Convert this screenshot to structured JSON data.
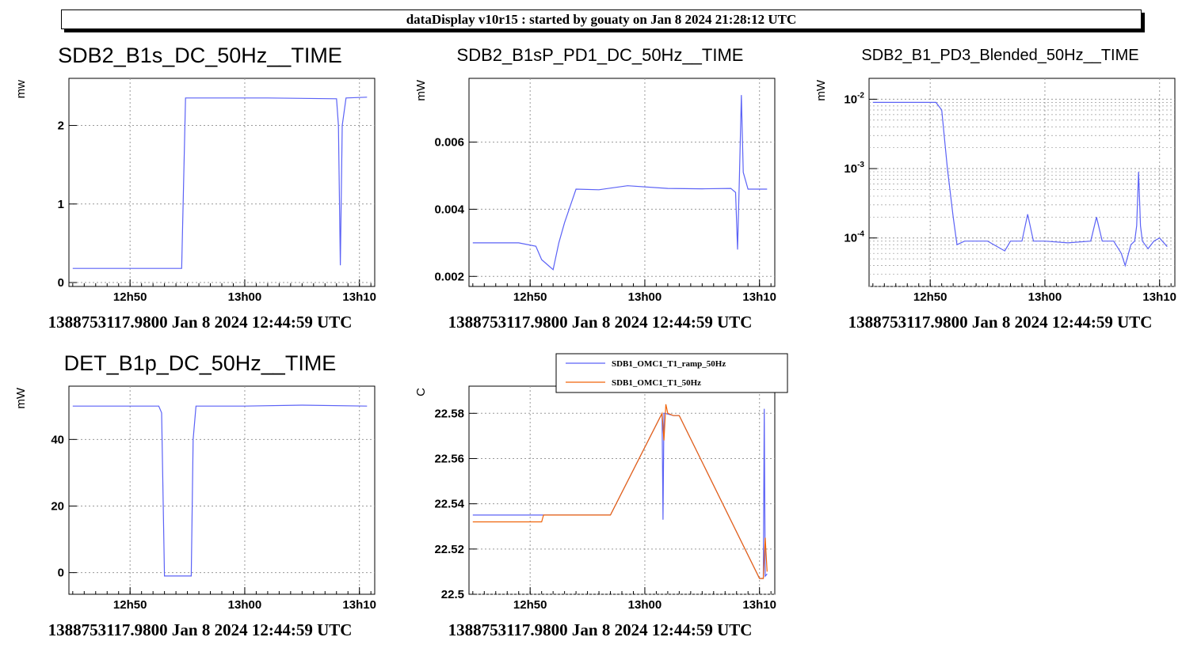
{
  "header": {
    "title": "dataDisplay v10r15 : started by gouaty on Jan  8 2024 21:28:12 UTC"
  },
  "colors": {
    "series_blue": "#5b62f6",
    "series_orange": "#f0640a",
    "grid": "#9a9a9a",
    "axis": "#000000"
  },
  "chart_data": [
    {
      "type": "line",
      "title": "SDB2_B1s_DC_50Hz__TIME",
      "ylabel": "mw",
      "xlabel": "",
      "footer": "1388753117.9800 Jan 8 2024 12:44:59 UTC",
      "x_ticks": [
        "12h50",
        "13h00",
        "13h10"
      ],
      "y_ticks": [
        "0",
        "1",
        "2"
      ],
      "yscale": "linear",
      "ylim": [
        -0.05,
        2.6
      ],
      "grid": true,
      "series": [
        {
          "color": "#5b62f6",
          "x": [
            "12:45:00",
            "12:53:00",
            "12:54:30",
            "12:54:50",
            "13:02:00",
            "13:08:00",
            "13:08:10",
            "13:08:20",
            "13:08:30",
            "13:08:50",
            "13:10:40"
          ],
          "y": [
            0.18,
            0.18,
            0.18,
            2.35,
            2.35,
            2.34,
            2.0,
            0.22,
            2.0,
            2.35,
            2.36
          ]
        }
      ]
    },
    {
      "type": "line",
      "title": "SDB2_B1sP_PD1_DC_50Hz__TIME",
      "ylabel": "mW",
      "xlabel": "",
      "footer": "1388753117.9800 Jan 8 2024 12:44:59 UTC",
      "x_ticks": [
        "12h50",
        "13h00",
        "13h10"
      ],
      "y_ticks": [
        "0.002",
        "0.004",
        "0.006"
      ],
      "yscale": "linear",
      "ylim": [
        0.0017,
        0.0079
      ],
      "grid": true,
      "series": [
        {
          "color": "#5b62f6",
          "x": [
            "12:45:00",
            "12:49:00",
            "12:50:30",
            "12:51:00",
            "12:51:40",
            "12:52:00",
            "12:52:30",
            "12:53:00",
            "12:54:00",
            "12:56:00",
            "12:58:30",
            "13:02:00",
            "13:05:00",
            "13:07:30",
            "13:07:55",
            "13:08:05",
            "13:08:15",
            "13:08:25",
            "13:08:35",
            "13:09:00",
            "13:10:40"
          ],
          "y": [
            0.003,
            0.003,
            0.0029,
            0.0025,
            0.0023,
            0.0022,
            0.003,
            0.0036,
            0.0046,
            0.00458,
            0.0047,
            0.00462,
            0.00461,
            0.00462,
            0.0045,
            0.0028,
            0.005,
            0.0074,
            0.0051,
            0.0046,
            0.0046
          ]
        }
      ]
    },
    {
      "type": "line",
      "title": "SDB2_B1_PD3_Blended_50Hz__TIME",
      "ylabel": "mW",
      "xlabel": "",
      "footer": "1388753117.9800 Jan 8 2024 12:44:59 UTC",
      "x_ticks": [
        "12h50",
        "13h00",
        "13h10"
      ],
      "y_ticks": [
        "10",
        "10",
        "10"
      ],
      "y_tick_exponents": [
        "-2",
        "-3",
        "-4"
      ],
      "yscale": "log",
      "ylim": [
        2e-05,
        0.02
      ],
      "grid": true,
      "series": [
        {
          "color": "#5b62f6",
          "x": [
            "12:45:00",
            "12:50:30",
            "12:51:00",
            "12:51:30",
            "12:52:00",
            "12:52:20",
            "12:53:00",
            "12:55:00",
            "12:56:30",
            "12:57:00",
            "12:58:00",
            "12:58:30",
            "12:59:00",
            "13:00:00",
            "13:02:00",
            "13:04:00",
            "13:04:30",
            "13:05:00",
            "13:06:00",
            "13:06:40",
            "13:07:00",
            "13:07:30",
            "13:07:50",
            "13:08:00",
            "13:08:10",
            "13:08:20",
            "13:08:30",
            "13:09:00",
            "13:09:30",
            "13:10:00",
            "13:10:40"
          ],
          "y": [
            0.009,
            0.009,
            0.007,
            0.001,
            0.0002,
            8e-05,
            9e-05,
            9e-05,
            6.5e-05,
            9e-05,
            9e-05,
            0.00022,
            9e-05,
            9e-05,
            8.5e-05,
            9e-05,
            0.0002,
            9e-05,
            9e-05,
            6e-05,
            4e-05,
            8e-05,
            9e-05,
            0.00015,
            0.0009,
            0.00015,
            9e-05,
            7e-05,
            9e-05,
            0.0001,
            7.5e-05
          ]
        }
      ]
    },
    {
      "type": "line",
      "title": "DET_B1p_DC_50Hz__TIME",
      "ylabel": "mW",
      "xlabel": "",
      "footer": "1388753117.9800 Jan 8 2024 12:44:59 UTC",
      "x_ticks": [
        "12h50",
        "13h00",
        "13h10"
      ],
      "y_ticks": [
        "0",
        "20",
        "40"
      ],
      "yscale": "linear",
      "ylim": [
        -6.5,
        56
      ],
      "grid": true,
      "series": [
        {
          "color": "#5b62f6",
          "x": [
            "12:45:00",
            "12:52:30",
            "12:52:45",
            "12:53:00",
            "12:55:00",
            "12:55:20",
            "12:55:30",
            "12:55:45",
            "13:00:00",
            "13:05:00",
            "13:10:40"
          ],
          "y": [
            50,
            50,
            48,
            -1,
            -1,
            -1,
            40,
            50,
            50,
            50.3,
            50
          ]
        }
      ]
    },
    {
      "type": "line",
      "title": "",
      "ylabel": "C",
      "xlabel": "",
      "footer": "1388753117.9800 Jan 8 2024 12:44:59 UTC",
      "x_ticks": [
        "12h50",
        "13h00",
        "13h10"
      ],
      "y_ticks": [
        "22.5",
        "22.52",
        "22.54",
        "22.56",
        "22.58"
      ],
      "yscale": "linear",
      "ylim": [
        22.5,
        22.592
      ],
      "grid": true,
      "legend": [
        "SDB1_OMC1_T1_ramp_50Hz",
        "SDB1_OMC1_T1_50Hz"
      ],
      "legend_position": "top-right",
      "series": [
        {
          "name": "SDB1_OMC1_T1_ramp_50Hz",
          "color": "#5b62f6",
          "x": [
            "12:45:00",
            "12:51:00",
            "12:51:10",
            "12:55:00",
            "12:57:00",
            "13:01:30",
            "13:01:35",
            "13:01:40",
            "13:01:45",
            "13:02:30",
            "13:03:00",
            "13:10:00",
            "13:10:20",
            "13:10:25",
            "13:10:30",
            "13:10:40"
          ],
          "y": [
            22.535,
            22.535,
            22.535,
            22.535,
            22.535,
            22.58,
            22.533,
            22.58,
            22.58,
            22.579,
            22.579,
            22.507,
            22.507,
            22.582,
            22.508,
            22.509
          ]
        },
        {
          "name": "SDB1_OMC1_T1_50Hz",
          "color": "#f0640a",
          "x": [
            "12:45:00",
            "12:51:00",
            "12:51:10",
            "12:55:00",
            "12:57:00",
            "13:01:30",
            "13:01:40",
            "13:01:50",
            "13:02:00",
            "13:02:30",
            "13:03:00",
            "13:10:00",
            "13:10:20",
            "13:10:30",
            "13:10:40"
          ],
          "y": [
            22.532,
            22.532,
            22.535,
            22.535,
            22.535,
            22.58,
            22.568,
            22.584,
            22.58,
            22.579,
            22.579,
            22.507,
            22.507,
            22.525,
            22.51
          ]
        }
      ]
    }
  ]
}
